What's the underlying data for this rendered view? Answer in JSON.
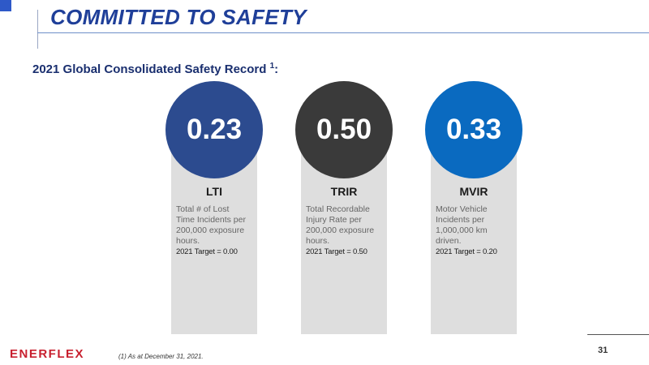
{
  "header": {
    "title": "COMMITTED TO SAFETY"
  },
  "subtitle": {
    "text": "2021 Global Consolidated Safety Record",
    "superscript": "1",
    "suffix": ":"
  },
  "colors": {
    "lti": "#2c4b8f",
    "trir": "#3a3a3a",
    "mvir": "#0a6ac0",
    "lti_bar": "#5f7aa6",
    "trir_bar": "#3a3a3a",
    "mvir_bar": "#0a6ac0"
  },
  "cards": [
    {
      "value": "0.23",
      "abbr": "LTI",
      "desc": [
        "Total # of Lost",
        "Time Incidents per",
        "200,000 exposure",
        "hours."
      ],
      "target": "2021 Target = 0.00",
      "icon": "worker-icon"
    },
    {
      "value": "0.50",
      "abbr": "TRIR",
      "desc": [
        "Total Recordable",
        "Injury Rate per",
        "200,000 exposure",
        "hours."
      ],
      "target": "2021 Target = 0.50",
      "icon": "first-aid-kit-icon"
    },
    {
      "value": "0.33",
      "abbr": "MVIR",
      "desc": [
        "Motor Vehicle",
        "Incidents per",
        "1,000,000 km",
        "driven."
      ],
      "target": "2021 Target = 0.20",
      "icon": "car-icon"
    }
  ],
  "footer": {
    "logo": "ENERFLEX",
    "footnote": "(1) As at December 31, 2021.",
    "page_number": "31"
  }
}
